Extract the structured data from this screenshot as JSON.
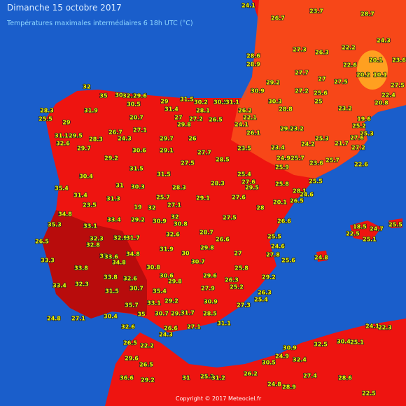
{
  "header": {
    "title": "Dimanche 15 octobre 2017",
    "subtitle": "Températures maximales intermédiaires 6 18h UTC (°C)"
  },
  "footer": {
    "copyright": "Copyright © 2017 Meteociel.fr"
  },
  "station_temperatures": [
    24.1,
    23.7,
    26.7,
    28.7,
    24.3,
    22.2,
    20.1,
    23.6,
    20.2,
    10.1,
    27.5,
    28.6,
    28.9,
    27.3,
    26.3,
    22.6,
    27.7,
    27,
    27.5,
    29.2,
    30.9,
    27.2,
    25.6,
    22.4,
    20.8,
    30.3,
    25,
    28.8,
    23.2,
    19.6,
    25.2,
    25.3,
    32,
    35,
    30,
    32.2,
    29.6,
    31.5,
    30.5,
    29,
    31.4,
    30.2,
    30.3,
    31.1,
    28.3,
    31.9,
    26.2,
    22.1,
    25.5,
    29,
    20.7,
    27,
    28.1,
    27.2,
    29.8,
    26.5,
    24.1,
    31.1,
    29.5,
    26.7,
    27.1,
    24.3,
    29.7,
    26,
    26.1,
    29.3,
    23.2,
    24.2,
    25.3,
    21.7,
    27.6,
    32.6,
    28.3,
    29.7,
    30.6,
    29.1,
    27.7,
    23.5,
    23.4,
    27.2,
    24.9,
    25.7,
    23.6,
    25.7,
    28.5,
    22.6,
    29.2,
    31.5,
    27.5,
    25.9,
    30.4,
    31.5,
    25.4,
    25.5,
    35.4,
    31,
    30.3,
    28.3,
    28.3,
    27.6,
    25.8,
    29.5,
    31.4,
    31.3,
    25.7,
    29.1,
    27.6,
    28.1,
    23.5,
    19,
    32,
    27.1,
    28,
    26.5,
    24.6,
    20.1,
    34.8,
    33.4,
    29.2,
    32,
    30.9,
    30.8,
    27.5,
    26.6,
    33.1,
    32.6,
    28.7,
    26.6,
    25.5,
    24.6,
    35.3,
    26.5,
    32.3,
    32.8,
    32.9,
    31.7,
    31.9,
    29.8,
    30,
    34.8,
    35,
    33.6,
    34.8,
    33.3,
    27,
    27.8,
    25.6,
    24.8,
    30.7,
    33.8,
    30.8,
    25.8,
    33.8,
    30.6,
    32.6,
    29.8,
    29.6,
    26.3,
    25.2,
    29.2,
    32.3,
    33.4,
    30.7,
    31.5,
    35.4,
    27.9,
    26.3,
    25.4,
    33.1,
    29.2,
    30.9,
    27.3,
    35.7,
    35,
    30.7,
    29.7,
    31.7,
    28.5,
    24.8,
    27.1,
    30.4,
    27.1,
    31.1,
    32.6,
    26.6,
    24.3,
    26.5,
    22.2,
    29.6,
    26.5,
    36.6,
    29.2,
    31,
    25.3,
    31.2,
    26.2,
    24.8,
    28.9,
    27.4,
    32.5,
    30.4,
    25.1,
    24.9,
    30.9,
    32.4,
    30.5,
    28.6,
    22.5,
    24.1,
    22.3,
    25.5,
    24.7,
    25.1,
    22.5,
    18.5
  ]
}
